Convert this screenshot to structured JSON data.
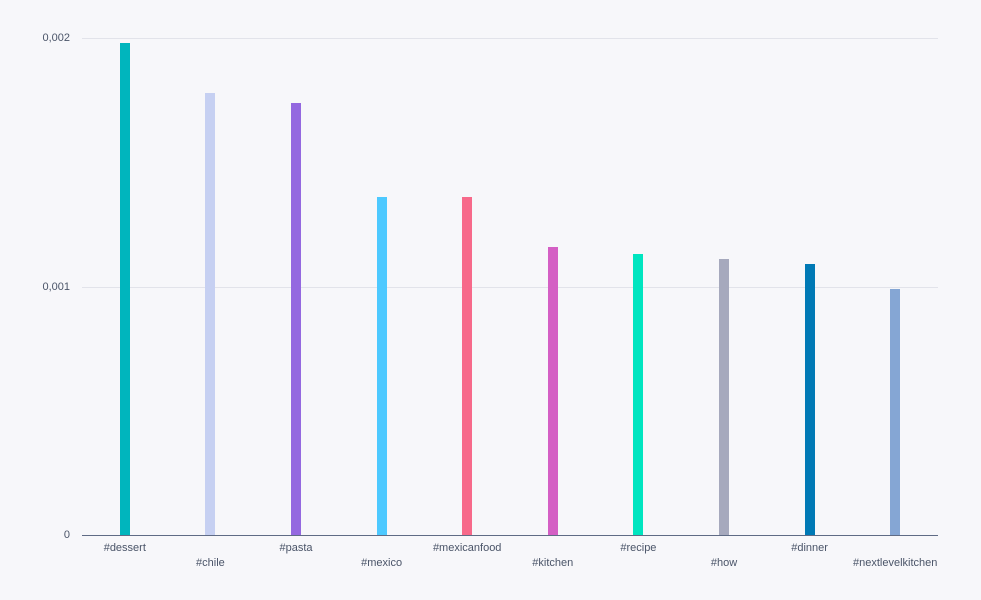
{
  "chart_data": {
    "type": "bar",
    "title": "",
    "xlabel": "",
    "ylabel": "",
    "ylim": [
      0,
      0.002
    ],
    "grid": true,
    "legend": null,
    "yticks": [
      {
        "value": 0,
        "label": "0"
      },
      {
        "value": 0.001,
        "label": "0,001"
      },
      {
        "value": 0.002,
        "label": "0,002"
      }
    ],
    "categories": [
      "#dessert",
      "#chile",
      "#pasta",
      "#mexico",
      "#mexicanfood",
      "#kitchen",
      "#recipe",
      "#how",
      "#dinner",
      "#nextlevelkitchen"
    ],
    "values": [
      0.00198,
      0.00178,
      0.00174,
      0.00136,
      0.00136,
      0.00116,
      0.00113,
      0.00111,
      0.00109,
      0.00099
    ],
    "colors": [
      "#00b5bd",
      "#c6d0f2",
      "#9468e0",
      "#4dc9ff",
      "#f7698a",
      "#d45fc4",
      "#00e5c0",
      "#a6a9bd",
      "#0079b5",
      "#85a6d4"
    ]
  }
}
